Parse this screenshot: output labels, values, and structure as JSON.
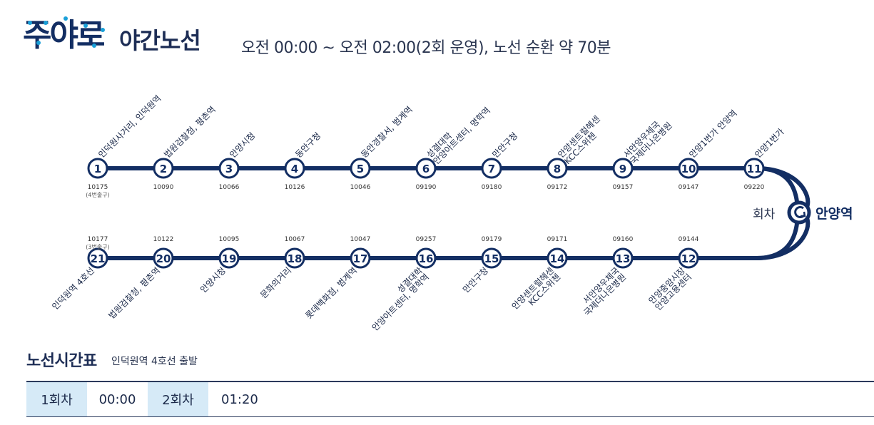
{
  "header": {
    "logo_text": "주야로",
    "title": "야간노선",
    "subtitle": "오전 00:00 ~ 오전 02:00(2회 운영), 노선 순환 약 70분"
  },
  "colors": {
    "route": "#132e63",
    "accent": "#1aa0d8",
    "table_head": "#d6eaf7"
  },
  "route": {
    "turnaround_label": "회차",
    "terminal_name": "안양역",
    "turnaround_icon": "turnaround-icon",
    "top_stops": [
      {
        "num": "1",
        "name": [
          "인덕원사거리, 인덕원역"
        ],
        "code": "10175",
        "exit": "(4번출구)"
      },
      {
        "num": "2",
        "name": [
          "법원검찰청, 평촌역"
        ],
        "code": "10090"
      },
      {
        "num": "3",
        "name": [
          "안양시청"
        ],
        "code": "10066"
      },
      {
        "num": "4",
        "name": [
          "동안구청"
        ],
        "code": "10126"
      },
      {
        "num": "5",
        "name": [
          "동안경찰서, 범계역"
        ],
        "code": "10046"
      },
      {
        "num": "6",
        "name": [
          "성결대학",
          "안양아트센터, 명학역"
        ],
        "code": "09190"
      },
      {
        "num": "7",
        "name": [
          "만안구청"
        ],
        "code": "09180"
      },
      {
        "num": "8",
        "name": [
          "안양센트럴헤센",
          "KCC스위첸"
        ],
        "code": "09172"
      },
      {
        "num": "9",
        "name": [
          "서안양우체국",
          "국제더나은병원"
        ],
        "code": "09157"
      },
      {
        "num": "10",
        "name": [
          "안양1번가 안양역"
        ],
        "code": "09147"
      },
      {
        "num": "11",
        "name": [
          "안양1번가"
        ],
        "code": "09220"
      }
    ],
    "bottom_stops": [
      {
        "num": "21",
        "name": [
          "인덕원역 4호선"
        ],
        "code": "10177",
        "exit": "(3번출구)"
      },
      {
        "num": "20",
        "name": [
          "법원검찰청, 평촌역"
        ],
        "code": "10122"
      },
      {
        "num": "19",
        "name": [
          "안양시청"
        ],
        "code": "10095"
      },
      {
        "num": "18",
        "name": [
          "문화의거리"
        ],
        "code": "10067"
      },
      {
        "num": "17",
        "name": [
          "롯데백화점, 범계역"
        ],
        "code": "10047"
      },
      {
        "num": "16",
        "name": [
          "성결대학",
          "안양아트센터, 명학역"
        ],
        "code": "09257"
      },
      {
        "num": "15",
        "name": [
          "만안구청"
        ],
        "code": "09179"
      },
      {
        "num": "14",
        "name": [
          "안양센트럴헤센",
          "KCC스위첸"
        ],
        "code": "09171"
      },
      {
        "num": "13",
        "name": [
          "서안양우체국",
          "국제더나은병원"
        ],
        "code": "09160"
      },
      {
        "num": "12",
        "name": [
          "안양중앙시장",
          "안양고용센터"
        ],
        "code": "09144"
      }
    ]
  },
  "timetable": {
    "title": "노선시간표",
    "subtitle": "인덕원역 4호선 출발",
    "rows": [
      {
        "label": "1회차",
        "time": "00:00"
      },
      {
        "label": "2회차",
        "time": "01:20"
      }
    ]
  }
}
